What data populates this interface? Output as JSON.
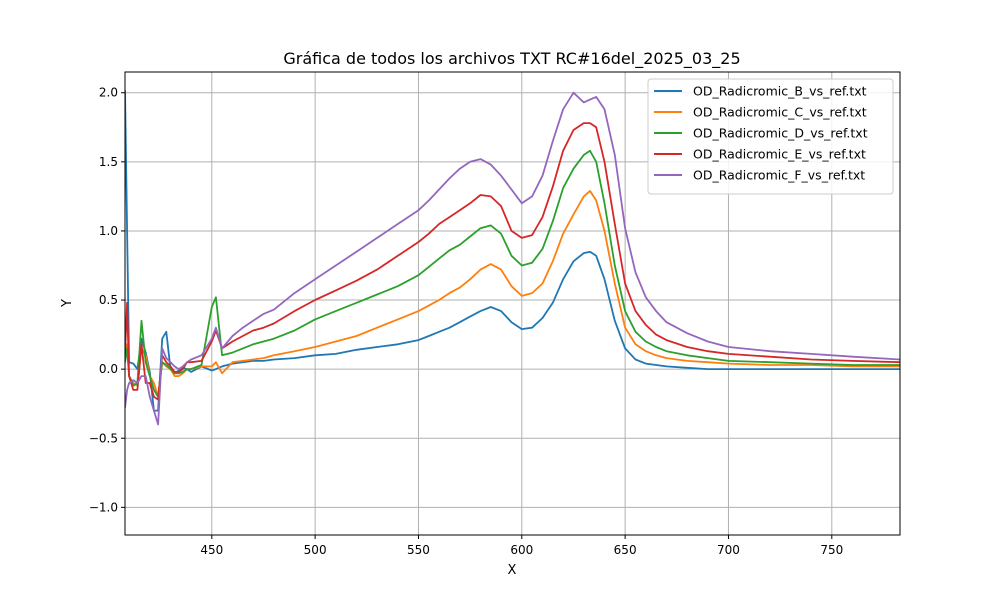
{
  "chart_data": {
    "type": "line",
    "title": "Gráfica de todos los archivos TXT RC#16del_2025_03_25",
    "xlabel": "X",
    "ylabel": "Y",
    "xlim": [
      408,
      783
    ],
    "ylim": [
      -1.2,
      2.15
    ],
    "x_ticks": [
      450,
      500,
      550,
      600,
      650,
      700,
      750
    ],
    "y_ticks": [
      -1.0,
      -0.5,
      0.0,
      0.5,
      1.0,
      1.5,
      2.0
    ],
    "x_tick_labels": [
      "450",
      "500",
      "550",
      "600",
      "650",
      "700",
      "750"
    ],
    "y_tick_labels": [
      "−1.0",
      "−0.5",
      "0.0",
      "0.5",
      "1.0",
      "1.5",
      "2.0"
    ],
    "grid": true,
    "legend_position": "upper right",
    "x": [
      408,
      409,
      410,
      412,
      414,
      416,
      418,
      420,
      422,
      424,
      426,
      428,
      430,
      432,
      434,
      436,
      438,
      440,
      445,
      450,
      452,
      455,
      460,
      465,
      470,
      475,
      480,
      490,
      500,
      510,
      520,
      530,
      540,
      550,
      555,
      560,
      565,
      570,
      575,
      580,
      585,
      590,
      595,
      600,
      605,
      610,
      615,
      620,
      625,
      630,
      633,
      636,
      640,
      645,
      650,
      655,
      660,
      665,
      670,
      680,
      690,
      700,
      720,
      740,
      760,
      783
    ],
    "series": [
      {
        "name": "OD_Radicromic_B_vs_ref.txt",
        "color": "#1f77b4",
        "values": [
          2.02,
          1.0,
          0.05,
          0.04,
          0.0,
          0.22,
          0.12,
          -0.02,
          -0.3,
          -0.3,
          0.22,
          0.27,
          0.0,
          -0.03,
          -0.01,
          0.01,
          0.0,
          -0.02,
          0.02,
          -0.01,
          0.0,
          0.02,
          0.04,
          0.05,
          0.06,
          0.06,
          0.07,
          0.08,
          0.1,
          0.11,
          0.14,
          0.16,
          0.18,
          0.21,
          0.24,
          0.27,
          0.3,
          0.34,
          0.38,
          0.42,
          0.45,
          0.42,
          0.34,
          0.29,
          0.3,
          0.37,
          0.48,
          0.65,
          0.78,
          0.84,
          0.85,
          0.82,
          0.65,
          0.35,
          0.15,
          0.07,
          0.04,
          0.03,
          0.02,
          0.01,
          0.0,
          0.0,
          0.0,
          0.0,
          0.0,
          0.0
        ]
      },
      {
        "name": "OD_Radicromic_C_vs_ref.txt",
        "color": "#ff7f0e",
        "values": [
          0.05,
          0.18,
          -0.05,
          -0.1,
          -0.12,
          0.15,
          0.1,
          -0.05,
          -0.1,
          -0.2,
          0.05,
          0.02,
          0.0,
          -0.05,
          -0.05,
          -0.03,
          0.0,
          0.0,
          0.02,
          0.02,
          0.05,
          -0.03,
          0.05,
          0.06,
          0.07,
          0.08,
          0.1,
          0.13,
          0.16,
          0.2,
          0.24,
          0.3,
          0.36,
          0.42,
          0.46,
          0.5,
          0.55,
          0.59,
          0.65,
          0.72,
          0.76,
          0.72,
          0.6,
          0.53,
          0.55,
          0.62,
          0.78,
          0.98,
          1.12,
          1.25,
          1.29,
          1.22,
          1.0,
          0.62,
          0.3,
          0.18,
          0.13,
          0.1,
          0.08,
          0.06,
          0.05,
          0.04,
          0.03,
          0.03,
          0.02,
          0.02
        ]
      },
      {
        "name": "OD_Radicromic_D_vs_ref.txt",
        "color": "#2ca02c",
        "values": [
          0.05,
          0.15,
          -0.05,
          -0.12,
          -0.1,
          0.35,
          0.05,
          -0.05,
          -0.15,
          -0.2,
          0.05,
          0.03,
          0.0,
          -0.03,
          -0.03,
          -0.02,
          0.0,
          0.0,
          0.03,
          0.45,
          0.52,
          0.1,
          0.12,
          0.15,
          0.18,
          0.2,
          0.22,
          0.28,
          0.36,
          0.42,
          0.48,
          0.54,
          0.6,
          0.68,
          0.74,
          0.8,
          0.86,
          0.9,
          0.96,
          1.02,
          1.04,
          0.98,
          0.82,
          0.75,
          0.77,
          0.87,
          1.07,
          1.31,
          1.45,
          1.55,
          1.58,
          1.5,
          1.2,
          0.75,
          0.42,
          0.27,
          0.2,
          0.16,
          0.13,
          0.1,
          0.08,
          0.06,
          0.05,
          0.04,
          0.03,
          0.03
        ]
      },
      {
        "name": "OD_Radicromic_E_vs_ref.txt",
        "color": "#d62728",
        "values": [
          0.1,
          0.48,
          -0.05,
          -0.15,
          -0.15,
          0.18,
          -0.1,
          -0.1,
          -0.2,
          -0.22,
          0.1,
          0.05,
          0.02,
          -0.02,
          -0.02,
          0.0,
          0.05,
          0.05,
          0.06,
          0.2,
          0.28,
          0.15,
          0.2,
          0.24,
          0.28,
          0.3,
          0.33,
          0.42,
          0.5,
          0.57,
          0.64,
          0.72,
          0.82,
          0.92,
          0.98,
          1.05,
          1.1,
          1.15,
          1.2,
          1.26,
          1.25,
          1.18,
          1.0,
          0.95,
          0.97,
          1.1,
          1.32,
          1.58,
          1.73,
          1.78,
          1.78,
          1.75,
          1.5,
          1.05,
          0.62,
          0.42,
          0.32,
          0.25,
          0.21,
          0.16,
          0.13,
          0.11,
          0.09,
          0.07,
          0.06,
          0.05
        ]
      },
      {
        "name": "OD_Radicromic_F_vs_ref.txt",
        "color": "#9467bd",
        "values": [
          -0.28,
          -0.15,
          -0.1,
          -0.08,
          -0.1,
          -0.05,
          -0.05,
          -0.2,
          -0.3,
          -0.4,
          0.15,
          0.08,
          0.05,
          0.02,
          0.0,
          0.02,
          0.05,
          0.07,
          0.1,
          0.22,
          0.3,
          0.15,
          0.24,
          0.3,
          0.35,
          0.4,
          0.43,
          0.55,
          0.65,
          0.75,
          0.85,
          0.95,
          1.05,
          1.15,
          1.22,
          1.3,
          1.38,
          1.45,
          1.5,
          1.52,
          1.48,
          1.4,
          1.3,
          1.2,
          1.25,
          1.4,
          1.65,
          1.88,
          2.0,
          1.93,
          1.95,
          1.97,
          1.88,
          1.55,
          1.02,
          0.7,
          0.52,
          0.42,
          0.34,
          0.26,
          0.2,
          0.16,
          0.13,
          0.11,
          0.09,
          0.07
        ]
      }
    ]
  }
}
